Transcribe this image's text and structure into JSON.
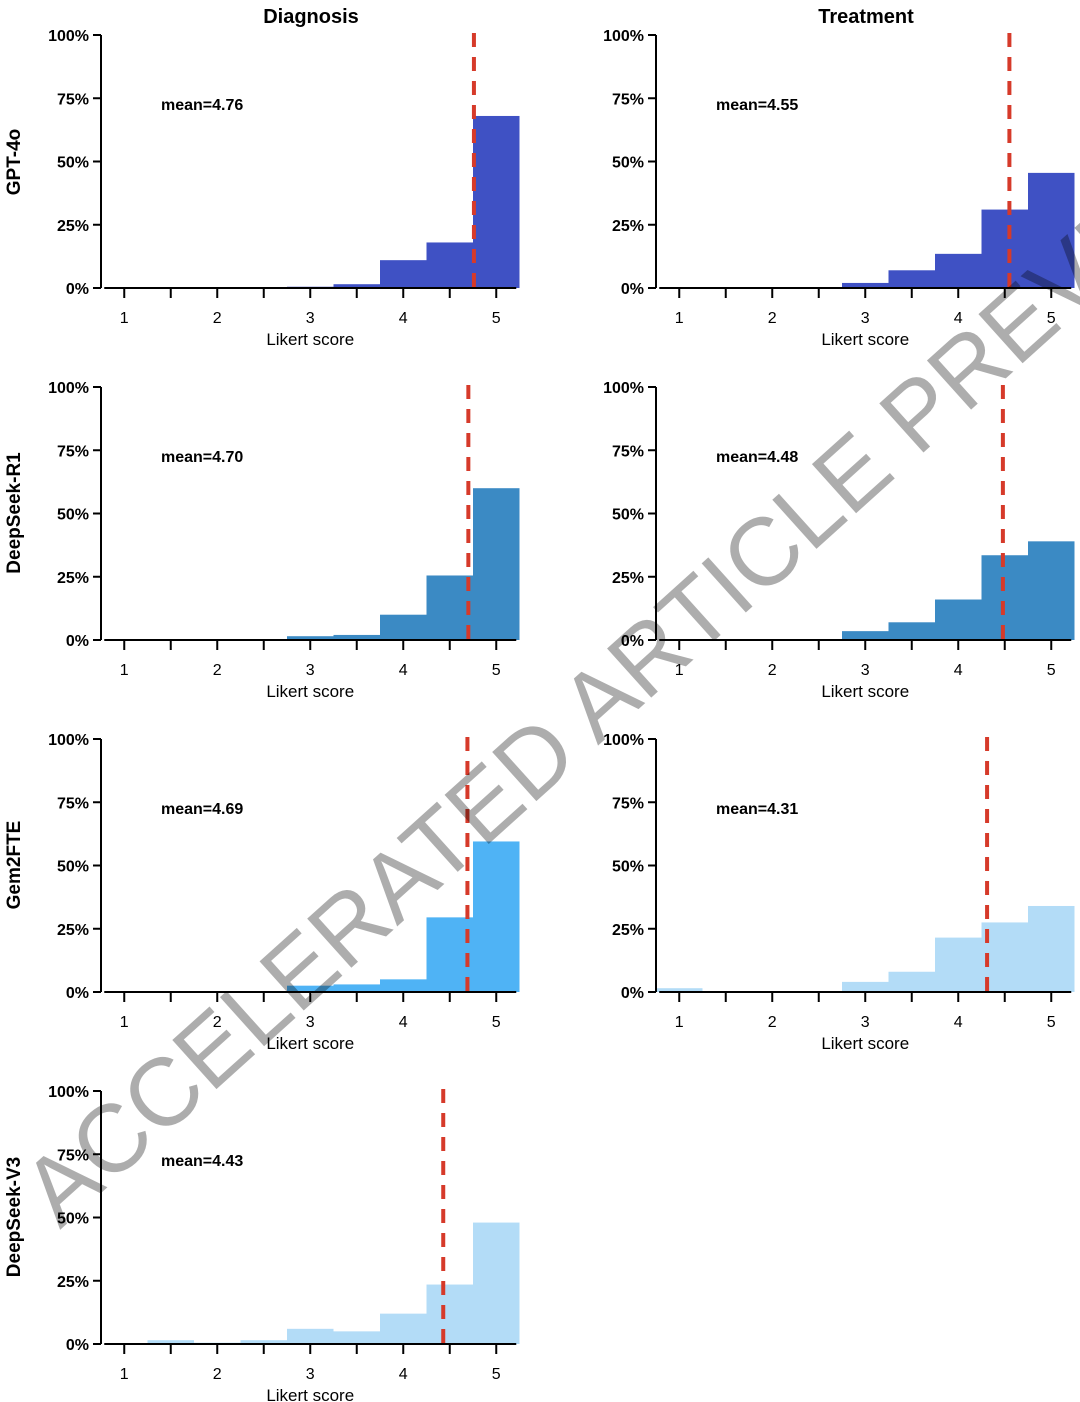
{
  "chart_data": {
    "type": "bar",
    "layout": "grid",
    "columns": [
      "Diagnosis",
      "Treatment"
    ],
    "rows": [
      "GPT-4o",
      "DeepSeek-R1",
      "Gem2FTE",
      "DeepSeek-V3"
    ],
    "xlabel": "Likert score",
    "x_tick_labels": [
      "1",
      "2",
      "3",
      "4",
      "5"
    ],
    "x_bins": [
      1,
      1.5,
      2,
      2.5,
      3,
      3.5,
      4,
      4.5,
      5
    ],
    "xlim": [
      0.75,
      5.25
    ],
    "y_tick_labels": [
      "0%",
      "25%",
      "50%",
      "75%",
      "100%"
    ],
    "ylim": [
      0,
      100
    ],
    "grid": false,
    "watermark": "ACCELERATED ARTICLE PREVIEW",
    "panels": [
      {
        "row": "GPT-4o",
        "column": "Diagnosis",
        "mean_label": "mean=4.76",
        "mean": 4.76,
        "color": "#3f51c4",
        "values": [
          0,
          0,
          0,
          0,
          0.5,
          1.5,
          11,
          18,
          68
        ]
      },
      {
        "row": "GPT-4o",
        "column": "Treatment",
        "mean_label": "mean=4.55",
        "mean": 4.55,
        "color": "#3f51c4",
        "values": [
          0,
          0,
          0,
          0,
          2,
          7,
          13.5,
          31,
          45.5
        ]
      },
      {
        "row": "DeepSeek-R1",
        "column": "Diagnosis",
        "mean_label": "mean=4.70",
        "mean": 4.7,
        "color": "#3b8ac4",
        "values": [
          0,
          0,
          0,
          0,
          1.5,
          2,
          10,
          25.5,
          60
        ]
      },
      {
        "row": "DeepSeek-R1",
        "column": "Treatment",
        "mean_label": "mean=4.48",
        "mean": 4.48,
        "color": "#3b8ac4",
        "values": [
          0,
          0,
          0,
          0,
          3.5,
          7,
          16,
          33.5,
          39
        ]
      },
      {
        "row": "Gem2FTE",
        "column": "Diagnosis",
        "mean_label": "mean=4.69",
        "mean": 4.69,
        "color": "#4fb3f5",
        "values": [
          0,
          0,
          0,
          0,
          2.5,
          3,
          5,
          29.5,
          59.5
        ]
      },
      {
        "row": "Gem2FTE",
        "column": "Treatment",
        "mean_label": "mean=4.31",
        "mean": 4.31,
        "color": "#b3dcf7",
        "values": [
          1.5,
          0,
          0,
          0,
          4,
          8,
          21.5,
          27.5,
          34
        ]
      },
      {
        "row": "DeepSeek-V3",
        "column": "Diagnosis",
        "mean_label": "mean=4.43",
        "mean": 4.43,
        "color": "#b3dcf7",
        "values": [
          0,
          1.5,
          0.5,
          1.5,
          6,
          5,
          12,
          23.5,
          48
        ]
      }
    ]
  }
}
